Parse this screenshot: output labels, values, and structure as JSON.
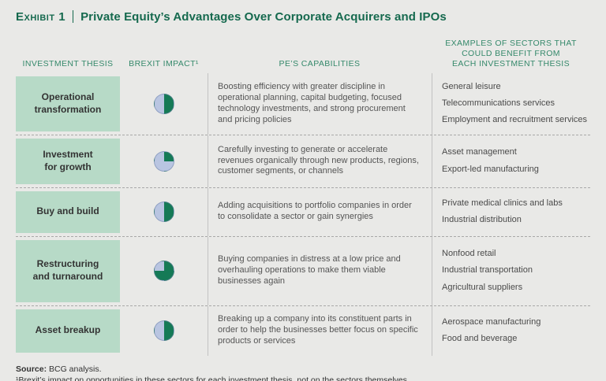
{
  "header": {
    "exhibit_label": "Exhibit 1",
    "title": "Private Equity’s Advantages Over Corporate Acquirers and IPOs"
  },
  "chart_data": {
    "type": "table",
    "title": "Private Equity’s Advantages Over Corporate Acquirers and IPOs",
    "columns": [
      "INVESTMENT THESIS",
      "BREXIT IMPACT¹",
      "PE’S CAPABILITIES",
      "EXAMPLES OF SECTORS THAT\nCOULD BENEFIT FROM\nEACH INVESTMENT THESIS"
    ],
    "brexit_impact_legend": "Pie fill fraction indicates magnitude of Brexit impact",
    "rows": [
      {
        "thesis": "Operational\ntransformation",
        "brexit_impact_fraction": 0.5,
        "capabilities": "Boosting efficiency with greater discipline in operational planning, capital budgeting, focused technology investments, and strong procurement and pricing policies",
        "sectors": [
          "General leisure",
          "Telecommunications services",
          "Employment and recruitment services"
        ]
      },
      {
        "thesis": "Investment\nfor growth",
        "brexit_impact_fraction": 0.25,
        "capabilities": "Carefully investing to generate or accelerate revenues organically through new products, regions, customer segments, or channels",
        "sectors": [
          "Asset management",
          "Export-led manufacturing"
        ]
      },
      {
        "thesis": "Buy and build",
        "brexit_impact_fraction": 0.5,
        "capabilities": "Adding acquisitions to portfolio companies in order to consolidate a sector or gain synergies",
        "sectors": [
          "Private medical clinics and labs",
          "Industrial distribution"
        ]
      },
      {
        "thesis": "Restructuring\nand turnaround",
        "brexit_impact_fraction": 0.75,
        "capabilities": "Buying companies in distress at a low price and overhauling operations to make them viable businesses again",
        "sectors": [
          "Nonfood retail",
          "Industrial transportation",
          "Agricultural suppliers"
        ]
      },
      {
        "thesis": "Asset breakup",
        "brexit_impact_fraction": 0.5,
        "capabilities": "Breaking up a company into its constituent parts in order to help the businesses better focus on specific products or services",
        "sectors": [
          "Aerospace manufacturing",
          "Food and beverage"
        ]
      }
    ]
  },
  "footer": {
    "source_label": "Source:",
    "source_text": "BCG analysis.",
    "footnote": "¹Brexit’s impact on opportunities in these sectors for each investment thesis, not on the sectors themselves."
  },
  "colors": {
    "title_green": "#15694e",
    "header_green": "#35896b",
    "label_bg_green": "#b7dac7",
    "pie_green": "#157a56",
    "pie_light": "#b9c5e1",
    "background": "#e9e9e7"
  }
}
